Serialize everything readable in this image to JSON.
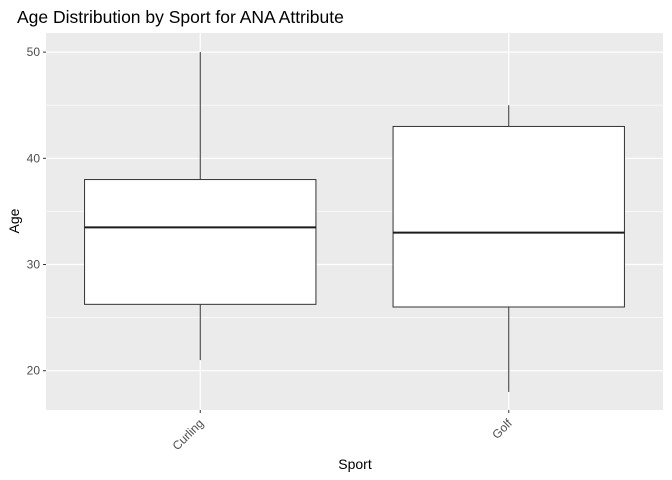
{
  "chart_data": {
    "type": "boxplot",
    "title": "Age Distribution by Sport for ANA Attribute",
    "xlabel": "Sport",
    "ylabel": "Age",
    "categories": [
      "Curling",
      "Golf"
    ],
    "boxes": [
      {
        "category": "Curling",
        "min": 21,
        "q1": 26.25,
        "median": 33.5,
        "q3": 38,
        "max": 50
      },
      {
        "category": "Golf",
        "min": 18,
        "q1": 26,
        "median": 33,
        "q3": 43,
        "max": 45
      }
    ],
    "y_ticks": [
      20,
      30,
      40,
      50
    ],
    "ylim": [
      16.3,
      51.8
    ],
    "grid": true,
    "panel_background": "#EBEBEB",
    "grid_color": "#FFFFFF",
    "box_fill": "#FFFFFF",
    "box_line": "#333333"
  }
}
